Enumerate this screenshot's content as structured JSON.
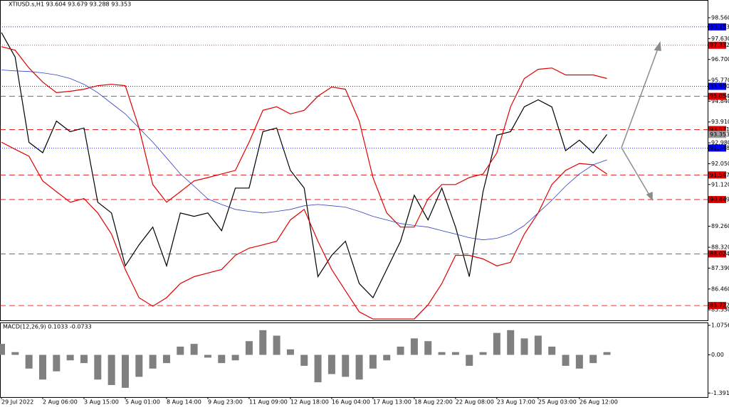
{
  "chart_data": [
    {
      "type": "line",
      "title": "XTIUSD.s,H1 93.604 93.679 93.288 93.353",
      "categories": [
        "29 Jul 2022",
        null,
        null,
        "2 Aug 06:00",
        null,
        null,
        "3 Aug 15:00",
        null,
        null,
        "5 Aug 01:00",
        null,
        null,
        "8 Aug 14:00",
        null,
        null,
        "9 Aug 23:00",
        null,
        null,
        "11 Aug 09:00",
        null,
        null,
        "12 Aug 18:00",
        null,
        null,
        "16 Aug 04:00",
        null,
        null,
        "17 Aug 13:00",
        null,
        null,
        "18 Aug 22:00",
        null,
        null,
        "22 Aug 08:00",
        null,
        null,
        "23 Aug 17:00",
        null,
        null,
        "25 Aug 03:00",
        null,
        null,
        "26 Aug 12:00",
        null,
        null
      ],
      "series": [
        {
          "color": "#000000",
          "width": 1.2,
          "values": [
            97.9,
            96.8,
            93.0,
            92.54,
            93.95,
            93.48,
            93.64,
            90.33,
            89.85,
            87.49,
            88.43,
            89.22,
            87.49,
            89.85,
            89.7,
            89.85,
            89.06,
            90.96,
            90.96,
            93.48,
            93.64,
            91.75,
            90.96,
            87.01,
            87.96,
            88.59,
            86.7,
            86.07,
            87.33,
            88.59,
            90.64,
            89.54,
            90.96,
            89.22,
            87.01,
            90.8,
            93.32,
            93.48,
            94.59,
            94.9,
            94.58,
            92.63,
            93.1,
            92.53,
            93.35
          ]
        },
        {
          "color": "#e00000",
          "width": 1.2,
          "values": [
            97.27,
            97.11,
            96.32,
            95.69,
            95.22,
            95.28,
            95.37,
            95.53,
            95.59,
            95.53,
            93.64,
            91.12,
            90.33,
            90.8,
            91.28,
            91.43,
            91.59,
            91.75,
            93.01,
            94.43,
            94.59,
            94.27,
            94.43,
            95.06,
            95.47,
            95.37,
            93.95,
            91.43,
            89.85,
            89.22,
            89.22,
            90.48,
            91.12,
            91.12,
            91.43,
            91.59,
            92.53,
            94.59,
            95.85,
            96.26,
            96.32,
            96.01,
            96.01,
            96.01,
            95.85
          ]
        },
        {
          "color": "#e00000",
          "width": 1.2,
          "values": [
            93.01,
            92.69,
            92.38,
            91.28,
            90.8,
            90.33,
            90.49,
            89.85,
            88.91,
            87.33,
            86.07,
            85.69,
            86.07,
            86.7,
            87.01,
            87.17,
            87.33,
            87.96,
            88.28,
            88.43,
            88.59,
            89.54,
            90.01,
            88.59,
            87.33,
            86.38,
            85.44,
            85.12,
            85.12,
            85.12,
            85.12,
            85.75,
            86.7,
            87.96,
            87.96,
            87.8,
            87.49,
            87.65,
            88.91,
            89.85,
            91.12,
            91.75,
            92.06,
            92.0,
            91.59
          ]
        },
        {
          "color": "#3040c0",
          "width": 0.8,
          "values": [
            96.23,
            96.19,
            96.16,
            96.1,
            96.01,
            95.85,
            95.59,
            95.22,
            94.74,
            94.27,
            93.64,
            93.01,
            92.31,
            91.59,
            91.05,
            90.48,
            90.23,
            90.01,
            89.92,
            89.85,
            89.92,
            90.01,
            90.17,
            90.23,
            90.17,
            90.11,
            89.92,
            89.7,
            89.54,
            89.38,
            89.29,
            89.22,
            89.06,
            88.91,
            88.75,
            88.65,
            88.72,
            88.91,
            89.29,
            89.85,
            90.42,
            91.05,
            91.59,
            92.0,
            92.22
          ]
        }
      ],
      "ylim": [
        85.06,
        99.32
      ],
      "yticks": [
        {
          "value": 98.56,
          "label": "98.560"
        },
        {
          "value": 97.63,
          "label": "97.630"
        },
        {
          "value": 96.7,
          "label": "96.700"
        },
        {
          "value": 95.77,
          "label": "95.770"
        },
        {
          "value": 94.84,
          "label": "94.840"
        },
        {
          "value": 93.91,
          "label": "93.910"
        },
        {
          "value": 92.98,
          "label": "92.980"
        },
        {
          "value": 92.05,
          "label": "92.050"
        },
        {
          "value": 91.12,
          "label": "91.120"
        },
        {
          "value": 89.26,
          "label": "89.260"
        },
        {
          "value": 88.32,
          "label": "88.320"
        },
        {
          "value": 87.39,
          "label": "87.390"
        },
        {
          "value": 86.46,
          "label": "86.460"
        },
        {
          "value": 85.53,
          "label": "85.530"
        }
      ],
      "levels": [
        {
          "value": 98.153,
          "label": "98.153",
          "color": "#0000ff",
          "style": "dotted"
        },
        {
          "value": 97.332,
          "label": "97.332",
          "color": "#e00000",
          "style": "dotted"
        },
        {
          "value": 95.5,
          "label": "95.500",
          "color": "#0000ff",
          "style": "dotted"
        },
        {
          "value": 95.054,
          "label": "95.054",
          "color": "#e00000",
          "style": "dashed"
        },
        {
          "value": 93.571,
          "label": "93.571",
          "color": "#e00000",
          "style": "dashed"
        },
        {
          "value": 93.353,
          "label": "93.353",
          "color": "#a0a0a0",
          "style": "none"
        },
        {
          "value": 92.748,
          "label": "92.748",
          "color": "#0000ff",
          "style": "dotted"
        },
        {
          "value": 91.547,
          "label": "91.547",
          "color": "#e00000",
          "style": "dashed"
        },
        {
          "value": 90.449,
          "label": "90.449",
          "color": "#e00000",
          "style": "dashed"
        },
        {
          "value": 88.024,
          "label": "88.024",
          "color": "#e00000",
          "style": "dashed"
        },
        {
          "value": 85.722,
          "label": "85.722",
          "color": "#e00000",
          "style": "dashed"
        }
      ]
    },
    {
      "type": "bar",
      "title": "MACD(12,26,9) 0.1033 -0.0733",
      "color": "#808080",
      "values": [
        0.4,
        0.1,
        -0.5,
        -0.9,
        -0.6,
        -0.2,
        -0.3,
        -0.9,
        -1.1,
        -1.2,
        -0.8,
        -0.5,
        -0.3,
        0.3,
        0.4,
        -0.1,
        -0.3,
        -0.2,
        0.5,
        0.9,
        0.7,
        0.2,
        -0.4,
        -1.0,
        -0.7,
        -0.8,
        -0.9,
        -0.5,
        -0.2,
        0.3,
        0.6,
        0.5,
        0.1,
        0.1,
        -0.4,
        0.1,
        0.8,
        0.9,
        0.6,
        0.7,
        0.3,
        -0.4,
        -0.5,
        -0.3,
        0.1
      ],
      "ylim": [
        -1.538,
        1.154
      ],
      "yticks": [
        1.0756,
        {
          "value": 0,
          "label": "0.00"
        },
        -1.3912
      ]
    }
  ]
}
